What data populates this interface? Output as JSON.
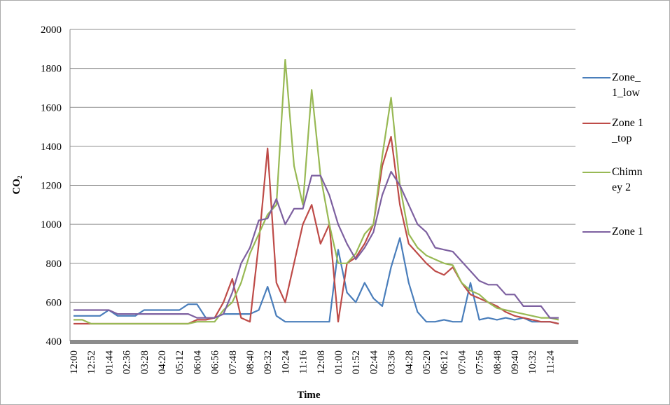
{
  "chart_data": {
    "type": "line",
    "y_label": "CO₂",
    "x_label": "Time",
    "categories": [
      "12:00",
      null,
      "12:52",
      null,
      "01:44",
      null,
      "02:36",
      null,
      "03:28",
      null,
      "04:20",
      null,
      "05:12",
      null,
      "06:04",
      null,
      "06:56",
      null,
      "07:48",
      null,
      "08:40",
      null,
      "09:32",
      null,
      "10:24",
      null,
      "11:16",
      null,
      "12:08",
      null,
      "01:00",
      null,
      "01:52",
      null,
      "02:44",
      null,
      "03:36",
      null,
      "04:28",
      null,
      "05:20",
      null,
      "06:12",
      null,
      "07:04",
      null,
      "07:56",
      null,
      "08:48",
      null,
      "09:40",
      null,
      "10:32",
      null,
      "11:24",
      null
    ],
    "series": [
      {
        "name": "Zone_1_low",
        "color": "#4a7ebb",
        "values": [
          530,
          530,
          530,
          530,
          560,
          530,
          530,
          530,
          560,
          560,
          560,
          560,
          560,
          590,
          590,
          520,
          520,
          540,
          540,
          540,
          540,
          560,
          680,
          530,
          500,
          500,
          500,
          500,
          500,
          500,
          870,
          650,
          600,
          700,
          620,
          580,
          780,
          930,
          700,
          550,
          500,
          500,
          510,
          500,
          500,
          700,
          510,
          520,
          510,
          520,
          510,
          520,
          500,
          500,
          500,
          490
        ]
      },
      {
        "name": "Zone 1_top",
        "color": "#be4b48",
        "values": [
          490,
          490,
          490,
          490,
          490,
          490,
          490,
          490,
          490,
          490,
          490,
          490,
          490,
          490,
          510,
          510,
          520,
          600,
          720,
          520,
          500,
          900,
          1390,
          700,
          600,
          800,
          1000,
          1100,
          900,
          1000,
          500,
          800,
          830,
          900,
          1000,
          1300,
          1450,
          1100,
          900,
          850,
          800,
          760,
          740,
          780,
          700,
          640,
          620,
          600,
          580,
          550,
          530,
          520,
          510,
          500,
          500,
          490
        ]
      },
      {
        "name": "Chimney 2",
        "color": "#98b954",
        "values": [
          510,
          510,
          490,
          490,
          490,
          490,
          490,
          490,
          490,
          490,
          490,
          490,
          490,
          490,
          500,
          500,
          500,
          560,
          600,
          700,
          850,
          950,
          1050,
          1100,
          1845,
          1300,
          1100,
          1690,
          1250,
          1000,
          800,
          800,
          850,
          950,
          1000,
          1350,
          1650,
          1200,
          950,
          880,
          840,
          820,
          800,
          790,
          700,
          660,
          640,
          600,
          570,
          560,
          550,
          540,
          530,
          520,
          520,
          510
        ]
      },
      {
        "name": "Zone 1",
        "color": "#7d60a0",
        "values": [
          560,
          560,
          560,
          560,
          560,
          540,
          540,
          540,
          540,
          540,
          540,
          540,
          540,
          540,
          520,
          520,
          520,
          540,
          650,
          800,
          880,
          1020,
          1030,
          1130,
          1000,
          1080,
          1080,
          1250,
          1250,
          1150,
          1000,
          900,
          820,
          880,
          960,
          1150,
          1270,
          1200,
          1100,
          1000,
          960,
          880,
          870,
          860,
          810,
          760,
          710,
          690,
          690,
          640,
          640,
          580,
          580,
          580,
          520,
          520
        ]
      }
    ],
    "ylim": [
      400,
      2000
    ],
    "yticks": [
      400,
      600,
      800,
      1000,
      1200,
      1400,
      1600,
      1800,
      2000
    ],
    "grid": true
  }
}
